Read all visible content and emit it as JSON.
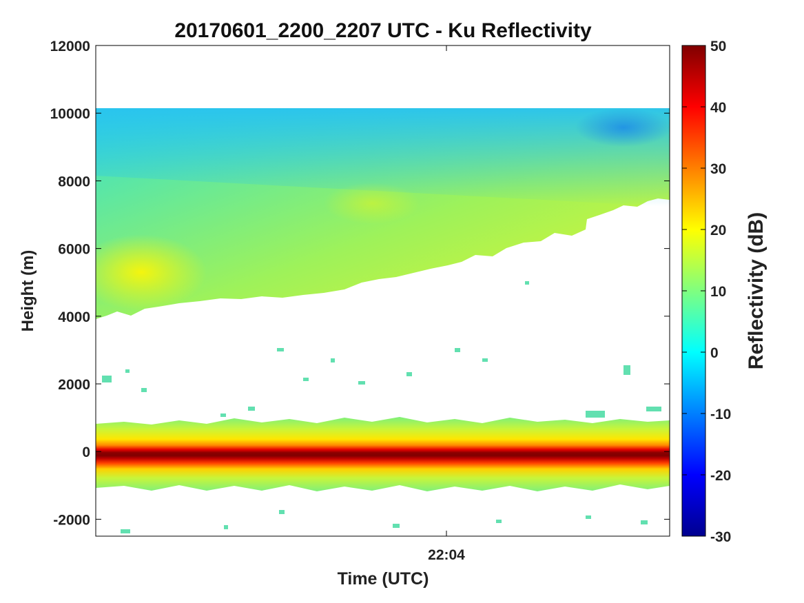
{
  "chart_data": {
    "type": "heatmap",
    "title": "20170601_2200_2207 UTC - Ku Reflectivity",
    "xlabel": "Time (UTC)",
    "ylabel": "Height (m)",
    "colorbar_label": "Reflectivity (dB)",
    "x_ticks": [
      "22:04"
    ],
    "y_ticks": [
      -2000,
      0,
      2000,
      4000,
      6000,
      8000,
      10000,
      12000
    ],
    "ylim": [
      -2500,
      12000
    ],
    "colorbar_ticks": [
      -30,
      -20,
      -10,
      0,
      10,
      20,
      30,
      40,
      50
    ],
    "clim": [
      -30,
      50
    ],
    "colormap": "jet",
    "grid": false,
    "features": {
      "upper_layer": {
        "top_height_m": 10150,
        "base_height_m_start": 4000,
        "base_height_m_end": 7500,
        "reflectivity_db_range": [
          -5,
          20
        ]
      },
      "surface_band": {
        "center_height_m": 0,
        "extent_m": [
          -1000,
          850
        ],
        "peak_reflectivity_db": 50
      }
    }
  },
  "colors": {
    "background": "#ffffff",
    "axes": "#000000",
    "text": "#222222"
  }
}
